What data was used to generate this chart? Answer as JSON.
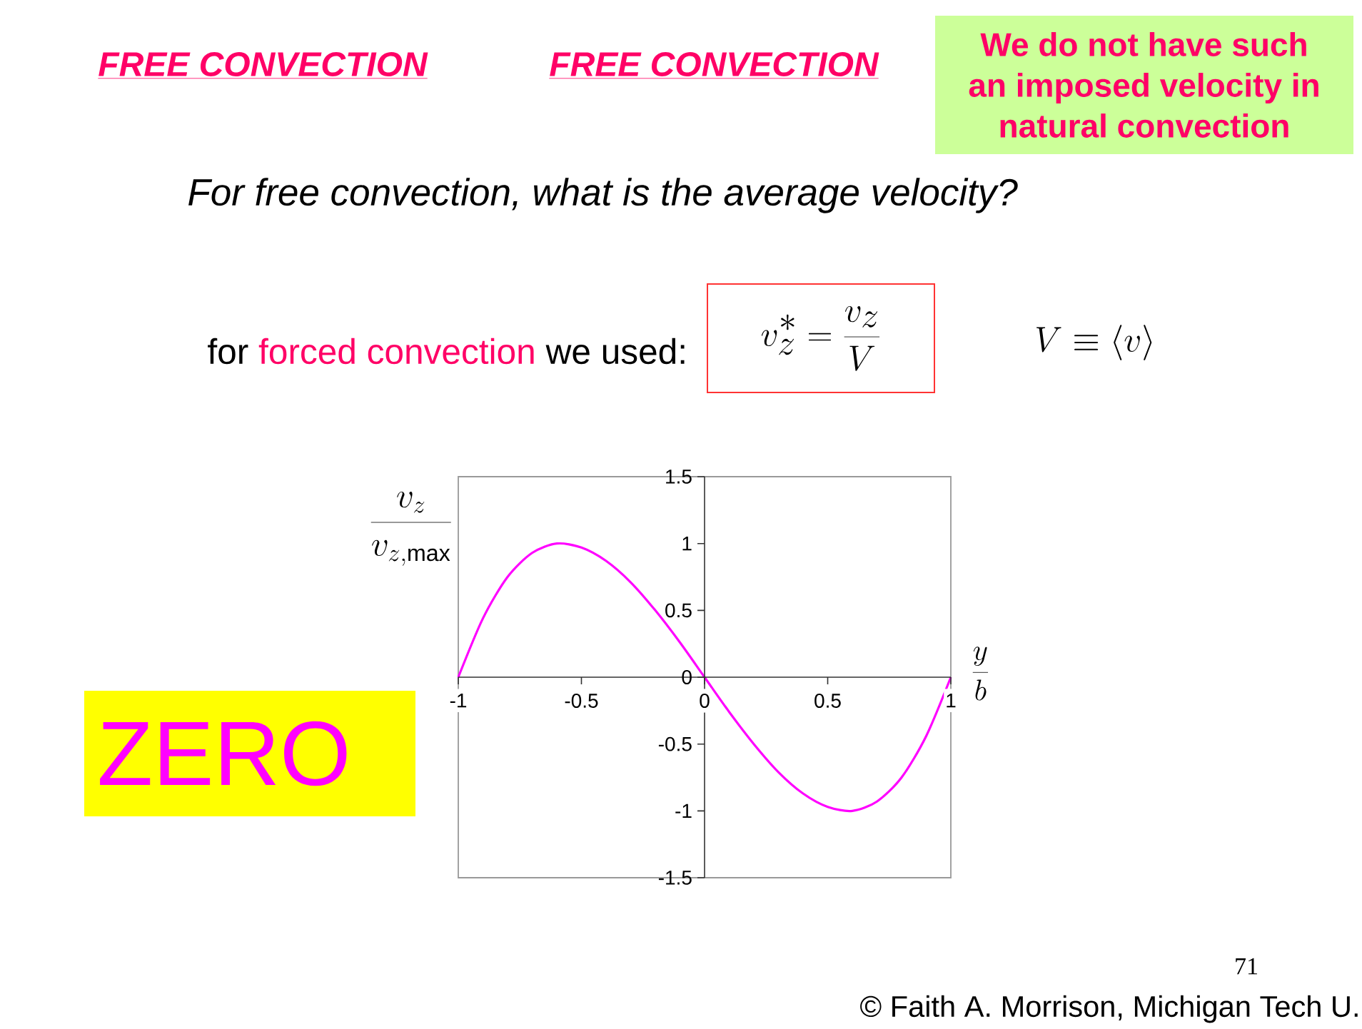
{
  "chart_data": {
    "type": "line",
    "title": "FREE CONVECTION",
    "subtitle": "For free convection, what is the average velocity?",
    "xlabel": "\\frac{y}{b}",
    "ylabel": "\\frac{v_z}{v_{z,\\mathrm{max}}}",
    "annotations": [
      "FREE CONVECTION",
      "We do not have such an imposed velocity in natural convection",
      "for",
      "forced convection",
      "we used:",
      "v_z^* = \\frac{v_z}{V}",
      "V \\equiv \\langle v \\rangle",
      "ZERO",
      "71",
      "© Faith A. Morrison, Michigan Tech U."
    ],
    "x": [
      -1,
      -0.9,
      -0.8,
      -0.7,
      -0.6,
      -0.5,
      -0.4,
      -0.3,
      -0.2,
      -0.1,
      0,
      0.1,
      0.2,
      0.3,
      0.4,
      0.5,
      0.6,
      0.7,
      0.8,
      0.9,
      1
    ],
    "series": [
      {
        "color": "#ff00ff",
        "values": [
          0,
          0.44,
          0.75,
          0.93,
          1.0,
          0.97,
          0.87,
          0.71,
          0.5,
          0.26,
          0,
          -0.26,
          -0.5,
          -0.71,
          -0.87,
          -0.97,
          -1.0,
          -0.93,
          -0.75,
          -0.44,
          0
        ]
      }
    ],
    "xlim": [
      -1,
      1
    ],
    "ylim": [
      -1.5,
      1.5
    ],
    "xticks": [
      -1,
      -0.5,
      0,
      0.5,
      1
    ],
    "yticks": [
      -1.5,
      -1,
      -0.5,
      0,
      0.5,
      1,
      1.5
    ]
  }
}
